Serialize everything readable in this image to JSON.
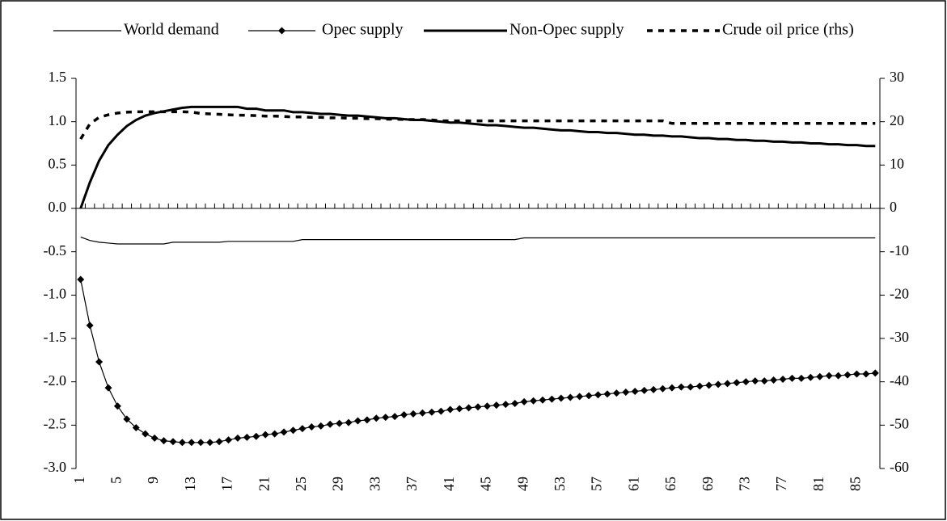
{
  "chart_data": {
    "type": "line",
    "categories": [
      1,
      null,
      null,
      null,
      5,
      null,
      null,
      null,
      9,
      null,
      null,
      null,
      13,
      null,
      null,
      null,
      17,
      null,
      null,
      null,
      21,
      null,
      null,
      null,
      25,
      null,
      null,
      null,
      29,
      null,
      null,
      null,
      33,
      null,
      null,
      null,
      37,
      null,
      null,
      null,
      41,
      null,
      null,
      null,
      45,
      null,
      null,
      null,
      49,
      null,
      null,
      null,
      53,
      null,
      null,
      null,
      57,
      null,
      null,
      null,
      61,
      null,
      null,
      null,
      65,
      null,
      null,
      null,
      69,
      null,
      null,
      null,
      73,
      null,
      null,
      null,
      77,
      null,
      null,
      null,
      81,
      null,
      null,
      null,
      85,
      null,
      null
    ],
    "series": [
      {
        "name": "World demand",
        "color": "#000000",
        "style": "thin",
        "values": [
          -0.33,
          -0.37,
          -0.39,
          -0.4,
          -0.41,
          -0.41,
          -0.41,
          -0.41,
          -0.41,
          -0.41,
          -0.39,
          -0.39,
          -0.39,
          -0.39,
          -0.39,
          -0.39,
          -0.38,
          -0.38,
          -0.38,
          -0.38,
          -0.38,
          -0.38,
          -0.38,
          -0.38,
          -0.36,
          -0.36,
          -0.36,
          -0.36,
          -0.36,
          -0.36,
          -0.36,
          -0.36,
          -0.36,
          -0.36,
          -0.36,
          -0.36,
          -0.36,
          -0.36,
          -0.36,
          -0.36,
          -0.36,
          -0.36,
          -0.36,
          -0.36,
          -0.36,
          -0.36,
          -0.36,
          -0.36,
          -0.34,
          -0.34,
          -0.34,
          -0.34,
          -0.34,
          -0.34,
          -0.34,
          -0.34,
          -0.34,
          -0.34,
          -0.34,
          -0.34,
          -0.34,
          -0.34,
          -0.34,
          -0.34,
          -0.34,
          -0.34,
          -0.34,
          -0.34,
          -0.34,
          -0.34,
          -0.34,
          -0.34,
          -0.34,
          -0.34,
          -0.34,
          -0.34,
          -0.34,
          -0.34,
          -0.34,
          -0.34,
          -0.34,
          -0.34,
          -0.34,
          -0.34,
          -0.34,
          -0.34,
          -0.34
        ]
      },
      {
        "name": "Opec supply",
        "color": "#000000",
        "style": "thin",
        "marker": "diamond",
        "values": [
          -0.82,
          -1.35,
          -1.77,
          -2.07,
          -2.28,
          -2.43,
          -2.53,
          -2.6,
          -2.65,
          -2.68,
          -2.69,
          -2.7,
          -2.7,
          -2.7,
          -2.7,
          -2.69,
          -2.67,
          -2.65,
          -2.64,
          -2.63,
          -2.61,
          -2.6,
          -2.58,
          -2.56,
          -2.54,
          -2.52,
          -2.51,
          -2.49,
          -2.48,
          -2.47,
          -2.45,
          -2.44,
          -2.42,
          -2.41,
          -2.4,
          -2.38,
          -2.37,
          -2.36,
          -2.35,
          -2.34,
          -2.32,
          -2.31,
          -2.3,
          -2.29,
          -2.28,
          -2.27,
          -2.26,
          -2.25,
          -2.23,
          -2.22,
          -2.21,
          -2.2,
          -2.19,
          -2.18,
          -2.17,
          -2.16,
          -2.15,
          -2.14,
          -2.13,
          -2.12,
          -2.11,
          -2.1,
          -2.09,
          -2.08,
          -2.07,
          -2.06,
          -2.06,
          -2.05,
          -2.04,
          -2.03,
          -2.02,
          -2.01,
          -2.0,
          -1.99,
          -1.99,
          -1.98,
          -1.97,
          -1.96,
          -1.96,
          -1.95,
          -1.94,
          -1.93,
          -1.93,
          -1.92,
          -1.91,
          -1.91,
          -1.9
        ]
      },
      {
        "name": "Non-Opec supply",
        "color": "#000000",
        "style": "thick",
        "values": [
          0,
          0.3,
          0.55,
          0.73,
          0.85,
          0.95,
          1.02,
          1.07,
          1.1,
          1.12,
          1.14,
          1.16,
          1.17,
          1.17,
          1.17,
          1.17,
          1.17,
          1.17,
          1.15,
          1.15,
          1.13,
          1.13,
          1.13,
          1.11,
          1.11,
          1.1,
          1.09,
          1.09,
          1.08,
          1.07,
          1.07,
          1.06,
          1.05,
          1.04,
          1.04,
          1.03,
          1.02,
          1.02,
          1.01,
          1,
          0.99,
          0.99,
          0.98,
          0.97,
          0.96,
          0.96,
          0.95,
          0.94,
          0.93,
          0.93,
          0.92,
          0.91,
          0.9,
          0.9,
          0.89,
          0.88,
          0.88,
          0.87,
          0.87,
          0.86,
          0.85,
          0.85,
          0.84,
          0.84,
          0.83,
          0.83,
          0.82,
          0.81,
          0.81,
          0.8,
          0.8,
          0.79,
          0.79,
          0.78,
          0.78,
          0.77,
          0.77,
          0.76,
          0.76,
          0.75,
          0.75,
          0.74,
          0.74,
          0.73,
          0.73,
          0.72,
          0.72
        ]
      },
      {
        "name": "Crude oil price (rhs)",
        "color": "#000000",
        "style": "dotted",
        "axis": "y2",
        "values": [
          16,
          19.5,
          21,
          21.6,
          22,
          22.2,
          22.3,
          22.3,
          22.3,
          22.3,
          22.3,
          22.3,
          22.2,
          21.9,
          21.8,
          21.7,
          21.6,
          21.5,
          21.5,
          21.4,
          21.3,
          21.3,
          21.2,
          21.1,
          21.1,
          21,
          21,
          20.9,
          20.9,
          20.8,
          20.8,
          20.7,
          20.7,
          20.6,
          20.6,
          20.5,
          20.5,
          20.5,
          20.4,
          20.2,
          20.2,
          20.2,
          20.2,
          20.2,
          20.2,
          20.2,
          20.2,
          20.2,
          20.2,
          20.2,
          20.2,
          20.2,
          20.2,
          20.2,
          20.2,
          20.2,
          20.2,
          20.2,
          20.2,
          20.2,
          20.2,
          20.2,
          20.2,
          20.2,
          19.6,
          19.6,
          19.6,
          19.6,
          19.6,
          19.6,
          19.6,
          19.6,
          19.6,
          19.6,
          19.6,
          19.6,
          19.6,
          19.6,
          19.6,
          19.6,
          19.6,
          19.6,
          19.6,
          19.6,
          19.6,
          19.6,
          19.6
        ]
      }
    ],
    "ylim": [
      -3,
      1.5
    ],
    "yticks": [
      {
        "value": -3,
        "label": "-3.0"
      },
      -2.5,
      {
        "value": -2,
        "label": "-2.0"
      },
      -1.5,
      {
        "value": -1,
        "label": "-1.0"
      },
      -0.5,
      {
        "value": 0,
        "label": "0.0"
      },
      0.5,
      {
        "value": 1,
        "label": "1.0"
      },
      1.5
    ],
    "y2lim": [
      -60,
      30
    ],
    "y2ticks": [
      -60,
      -50,
      -40,
      -30,
      -20,
      -10,
      0,
      10,
      20,
      30
    ],
    "grid": false,
    "legend": "top"
  }
}
